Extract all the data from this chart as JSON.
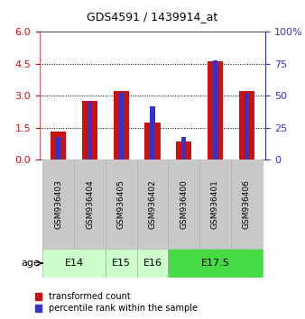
{
  "title": "GDS4591 / 1439914_at",
  "samples": [
    "GSM936403",
    "GSM936404",
    "GSM936405",
    "GSM936402",
    "GSM936400",
    "GSM936401",
    "GSM936406"
  ],
  "transformed_count": [
    1.3,
    2.75,
    3.2,
    1.75,
    0.85,
    4.6,
    3.2
  ],
  "percentile_rank_scaled": [
    1.08,
    2.7,
    3.12,
    2.52,
    1.08,
    4.68,
    3.12
  ],
  "age_groups": [
    {
      "label": "E14",
      "span": [
        0,
        2
      ],
      "color": "#ccffcc"
    },
    {
      "label": "E15",
      "span": [
        2,
        3
      ],
      "color": "#ccffcc"
    },
    {
      "label": "E16",
      "span": [
        3,
        4
      ],
      "color": "#ccffcc"
    },
    {
      "label": "E17.5",
      "span": [
        4,
        7
      ],
      "color": "#44dd44"
    }
  ],
  "ylim_left": [
    0,
    6
  ],
  "ylim_right": [
    0,
    100
  ],
  "yticks_left": [
    0,
    1.5,
    3.0,
    4.5,
    6.0
  ],
  "yticks_right": [
    0,
    25,
    50,
    75,
    100
  ],
  "red_color": "#cc1111",
  "blue_color": "#3333cc",
  "sample_bg": "#c8c8c8",
  "plot_bg": "#ffffff",
  "legend_red": "transformed count",
  "legend_blue": "percentile rank within the sample",
  "age_label": "age"
}
